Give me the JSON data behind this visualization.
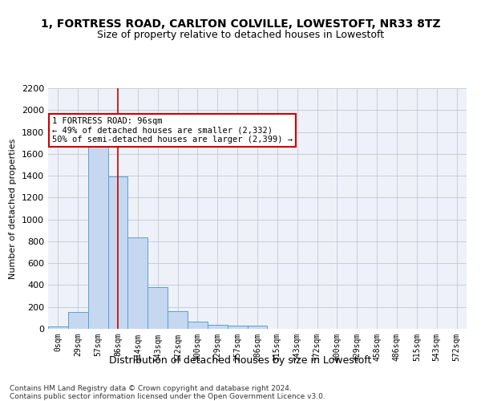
{
  "title": "1, FORTRESS ROAD, CARLTON COLVILLE, LOWESTOFT, NR33 8TZ",
  "subtitle": "Size of property relative to detached houses in Lowestoft",
  "xlabel": "Distribution of detached houses by size in Lowestoft",
  "ylabel": "Number of detached properties",
  "bar_color": "#c5d8f0",
  "bar_edge_color": "#5a9fd4",
  "background_color": "#eef2f8",
  "categories": [
    "0sqm",
    "29sqm",
    "57sqm",
    "86sqm",
    "114sqm",
    "143sqm",
    "172sqm",
    "200sqm",
    "229sqm",
    "257sqm",
    "286sqm",
    "315sqm",
    "343sqm",
    "372sqm",
    "400sqm",
    "429sqm",
    "458sqm",
    "486sqm",
    "515sqm",
    "543sqm",
    "572sqm"
  ],
  "values": [
    20,
    155,
    1700,
    1390,
    835,
    385,
    160,
    65,
    37,
    28,
    28,
    0,
    0,
    0,
    0,
    0,
    0,
    0,
    0,
    0,
    0
  ],
  "ylim": [
    0,
    2200
  ],
  "yticks": [
    0,
    200,
    400,
    600,
    800,
    1000,
    1200,
    1400,
    1600,
    1800,
    2000,
    2200
  ],
  "annotation_text": "1 FORTRESS ROAD: 96sqm\n← 49% of detached houses are smaller (2,332)\n50% of semi-detached houses are larger (2,399) →",
  "vline_x": 3,
  "annotation_box_color": "#ffffff",
  "annotation_box_edge_color": "#cc0000",
  "footer_line1": "Contains HM Land Registry data © Crown copyright and database right 2024.",
  "footer_line2": "Contains public sector information licensed under the Open Government Licence v3.0.",
  "grid_color": "#c0c8d8",
  "vline_color": "#cc0000"
}
